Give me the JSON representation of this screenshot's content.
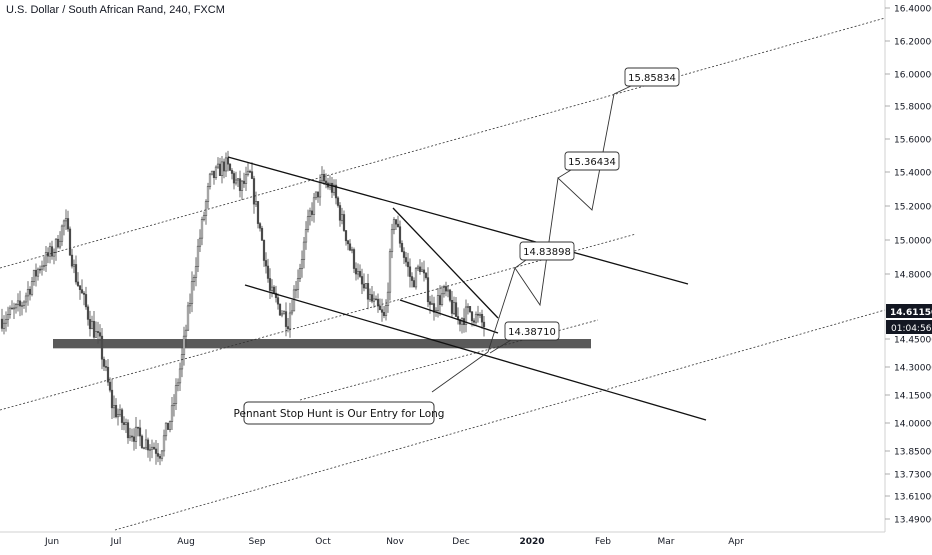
{
  "header": {
    "title": "U.S. Dollar / South African Rand, 240, FXCM"
  },
  "chart_data": {
    "type": "candlestick",
    "y_axis": {
      "ticks": [
        "16.40000",
        "16.20000",
        "16.00000",
        "15.80000",
        "15.60000",
        "15.40000",
        "15.20000",
        "15.00000",
        "14.80000",
        "14.45000",
        "14.30000",
        "14.15000",
        "14.00000",
        "13.85000",
        "13.73000",
        "13.61000",
        "13.49000"
      ],
      "tick_values": [
        16.4,
        16.2,
        16.0,
        15.8,
        15.6,
        15.4,
        15.2,
        15.0,
        14.8,
        14.45,
        14.3,
        14.15,
        14.0,
        13.85,
        13.73,
        13.61,
        13.49
      ],
      "current_price": "14.61150",
      "countdown": "01:04:56",
      "current_price_value": 14.6115
    },
    "x_axis": {
      "labels": [
        "Jun",
        "Jul",
        "Aug",
        "Sep",
        "Oct",
        "Nov",
        "Dec",
        "2020",
        "Feb",
        "Mar",
        "Apr"
      ],
      "bold_label": "2020"
    },
    "annotations": {
      "target_1": "14.38710",
      "target_2": "14.83898",
      "target_3": "15.36434",
      "target_4": "15.85834",
      "note": "Pennant Stop Hunt is Our Entry for Long"
    },
    "support_zone": [
      14.4,
      14.45
    ],
    "colors": {
      "up": "#4a4a4a",
      "down": "#4a4a4a",
      "price_label_bg": "#131722",
      "zone": "#5a5a5a"
    }
  }
}
